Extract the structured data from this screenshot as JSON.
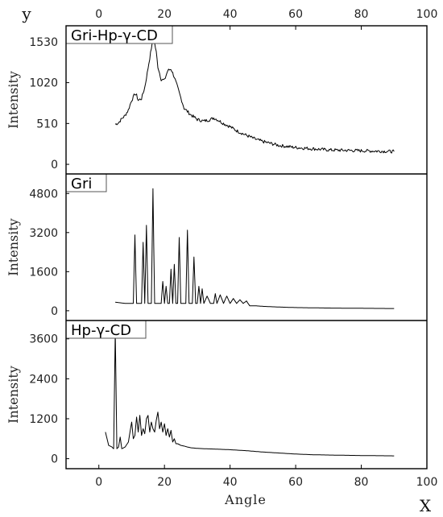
{
  "corner_labels": {
    "y": "y",
    "x": "X"
  },
  "x_axis": {
    "label": "Angle",
    "ticks": [
      "0",
      "20",
      "40",
      "60",
      "80",
      "100"
    ],
    "range": [
      -10,
      100
    ]
  },
  "chart_data": [
    {
      "type": "line",
      "title": "Gri-Hp-γ-CD",
      "ylabel": "Intensity",
      "yticks": [
        "0",
        "510",
        "1020",
        "1530"
      ],
      "ylim": [
        -120,
        1730
      ],
      "series": [
        {
          "x": [
            5,
            6,
            7,
            8,
            9,
            10,
            11,
            11.5,
            12,
            13,
            14,
            15,
            16,
            16.5,
            17,
            17.5,
            18,
            19,
            20,
            21,
            22,
            23,
            24,
            25,
            26,
            28,
            30,
            32,
            34,
            35,
            36,
            38,
            40,
            42,
            44,
            46,
            48,
            50,
            55,
            60,
            65,
            70,
            75,
            80,
            85,
            90
          ],
          "y": [
            500,
            520,
            570,
            610,
            680,
            800,
            880,
            860,
            800,
            820,
            960,
            1200,
            1450,
            1540,
            1510,
            1400,
            1220,
            1060,
            1050,
            1170,
            1190,
            1090,
            960,
            830,
            700,
            620,
            560,
            540,
            560,
            580,
            560,
            510,
            470,
            420,
            380,
            345,
            310,
            285,
            235,
            210,
            195,
            180,
            175,
            170,
            165,
            160
          ]
        }
      ]
    },
    {
      "type": "line",
      "title": "Gri",
      "ylabel": "Intensity",
      "yticks": [
        "0",
        "1600",
        "3200",
        "4800"
      ],
      "ylim": [
        -400,
        5600
      ],
      "series": [
        {
          "x": [
            5,
            8,
            10,
            10.5,
            11,
            11.5,
            12,
            13,
            13.5,
            14,
            14.5,
            15,
            15.5,
            16,
            16.5,
            17,
            17.5,
            18,
            19,
            19.5,
            20,
            20.5,
            21,
            21.5,
            22,
            22.5,
            23,
            23.5,
            24,
            24.5,
            25,
            25.5,
            26,
            26.5,
            27,
            27.5,
            28,
            28.5,
            29,
            29.5,
            30,
            30.5,
            31,
            31.5,
            32,
            33,
            34,
            35,
            35.5,
            36,
            37,
            38,
            39,
            40,
            41,
            42,
            43,
            44,
            45,
            46,
            48,
            50,
            55,
            60,
            70,
            80,
            90
          ],
          "y": [
            350,
            300,
            300,
            300,
            3100,
            300,
            300,
            300,
            2800,
            300,
            3500,
            300,
            300,
            300,
            5000,
            300,
            300,
            300,
            300,
            1200,
            300,
            1000,
            300,
            300,
            1700,
            300,
            1900,
            300,
            300,
            3000,
            300,
            300,
            300,
            300,
            3300,
            300,
            300,
            300,
            2200,
            300,
            300,
            1000,
            300,
            900,
            300,
            600,
            300,
            300,
            700,
            300,
            650,
            300,
            600,
            300,
            500,
            300,
            450,
            300,
            400,
            200,
            200,
            180,
            150,
            130,
            110,
            100,
            90
          ]
        }
      ]
    },
    {
      "type": "line",
      "title": "Hp-γ-CD",
      "ylabel": "Intensity",
      "yticks": [
        "0",
        "1200",
        "2400",
        "3600"
      ],
      "ylim": [
        -300,
        4150
      ],
      "series": [
        {
          "x": [
            2,
            3,
            4,
            4.5,
            5,
            5.5,
            6,
            6.5,
            7,
            8,
            9,
            10,
            10.5,
            11,
            11.5,
            12,
            12.5,
            13,
            13.5,
            14,
            14.5,
            15,
            15.5,
            16,
            16.5,
            17,
            17.5,
            18,
            18.5,
            19,
            19.5,
            20,
            20.5,
            21,
            21.5,
            22,
            22.5,
            23,
            23.5,
            24,
            25,
            26,
            27,
            28,
            30,
            32,
            35,
            40,
            45,
            50,
            55,
            60,
            65,
            70,
            80,
            90
          ],
          "y": [
            800,
            400,
            350,
            300,
            3850,
            300,
            350,
            650,
            300,
            350,
            500,
            1100,
            600,
            700,
            1250,
            800,
            1300,
            700,
            900,
            750,
            1200,
            1300,
            800,
            1100,
            900,
            800,
            1150,
            1400,
            900,
            1100,
            800,
            1050,
            700,
            900,
            650,
            850,
            500,
            600,
            450,
            450,
            400,
            380,
            350,
            330,
            310,
            300,
            290,
            270,
            240,
            200,
            170,
            140,
            120,
            110,
            95,
            85
          ]
        }
      ]
    }
  ]
}
